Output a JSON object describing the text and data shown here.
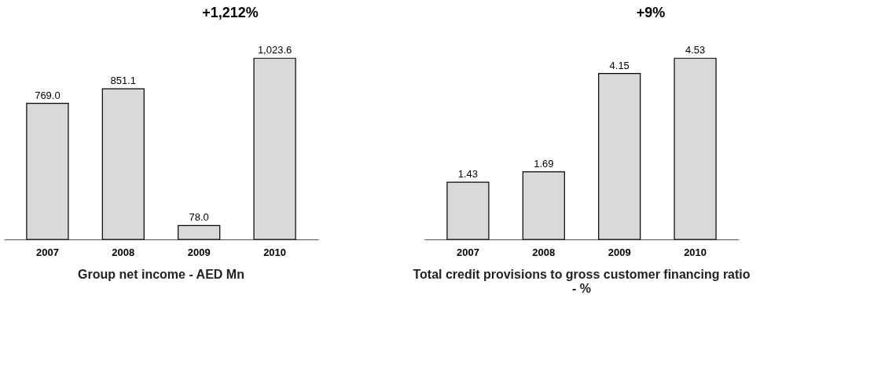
{
  "chart_data": [
    {
      "type": "bar",
      "title": "Group net income - AED Mn",
      "categories": [
        "2007",
        "2008",
        "2009",
        "2010"
      ],
      "values": [
        769.0,
        851.1,
        78.0,
        1023.6
      ],
      "value_labels": [
        "769.0",
        "851.1",
        "78.0",
        "1,023.6"
      ],
      "color": "#d9d9d9",
      "annotations": [
        "+1,212%"
      ]
    },
    {
      "type": "bar",
      "title": "Total credit provisions to gross customer financing ratio - %",
      "categories": [
        "2007",
        "2008",
        "2009",
        "2010"
      ],
      "values": [
        1.43,
        1.69,
        4.15,
        4.53
      ],
      "data_labels": true,
      "color": "#d9d9d9",
      "annotations": [
        "+9%"
      ]
    }
  ]
}
